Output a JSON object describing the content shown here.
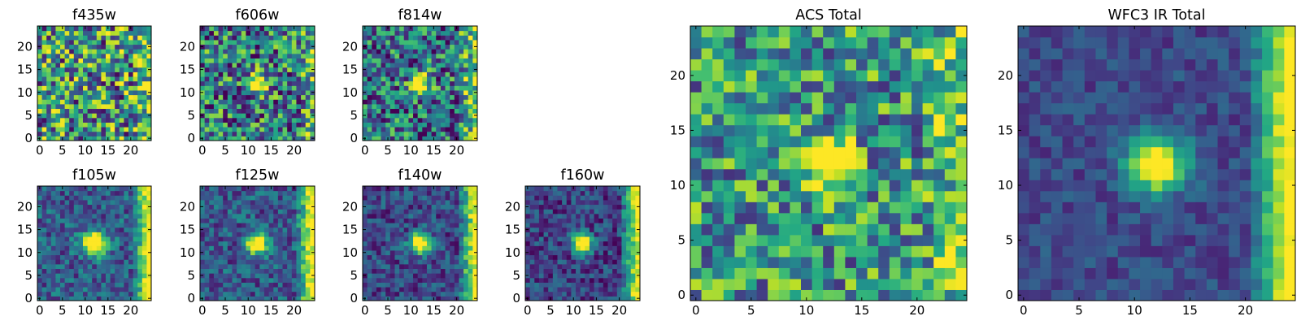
{
  "chart_data": [
    {
      "type": "heatmap",
      "title": "f435w",
      "xlim": [
        0,
        24
      ],
      "ylim": [
        0,
        24
      ],
      "xticks": [
        0,
        5,
        10,
        15,
        20
      ],
      "yticks": [
        0,
        5,
        10,
        15,
        20
      ],
      "colormap": "viridis",
      "source": {
        "noise": 0.5,
        "blob": null,
        "edge": 0.25,
        "bias": 0.52
      }
    },
    {
      "type": "heatmap",
      "title": "f606w",
      "xlim": [
        0,
        24
      ],
      "ylim": [
        0,
        24
      ],
      "xticks": [
        0,
        5,
        10,
        15,
        20
      ],
      "yticks": [
        0,
        5,
        10,
        15,
        20
      ],
      "colormap": "viridis",
      "source": {
        "noise": 0.45,
        "blob": {
          "x": 12,
          "y": 12,
          "r": 1.4
        },
        "edge": 0.2,
        "bias": 0.42
      }
    },
    {
      "type": "heatmap",
      "title": "f814w",
      "xlim": [
        0,
        24
      ],
      "ylim": [
        0,
        24
      ],
      "xticks": [
        0,
        5,
        10,
        15,
        20
      ],
      "yticks": [
        0,
        5,
        10,
        15,
        20
      ],
      "colormap": "viridis",
      "source": {
        "noise": 0.42,
        "blob": {
          "x": 12,
          "y": 12,
          "r": 1.4
        },
        "edge": 0.45,
        "bias": 0.38
      }
    },
    {
      "type": "heatmap",
      "title": "f105w",
      "xlim": [
        0,
        24
      ],
      "ylim": [
        0,
        24
      ],
      "xticks": [
        0,
        5,
        10,
        15,
        20
      ],
      "yticks": [
        0,
        5,
        10,
        15,
        20
      ],
      "colormap": "viridis",
      "source": {
        "noise": 0.22,
        "blob": {
          "x": 12,
          "y": 12,
          "r": 1.8
        },
        "edge": 0.75,
        "bias": 0.3
      }
    },
    {
      "type": "heatmap",
      "title": "f125w",
      "xlim": [
        0,
        24
      ],
      "ylim": [
        0,
        24
      ],
      "xticks": [
        0,
        5,
        10,
        15,
        20
      ],
      "yticks": [
        0,
        5,
        10,
        15,
        20
      ],
      "colormap": "viridis",
      "source": {
        "noise": 0.22,
        "blob": {
          "x": 12,
          "y": 12,
          "r": 1.6
        },
        "edge": 0.75,
        "bias": 0.28
      }
    },
    {
      "type": "heatmap",
      "title": "f140w",
      "xlim": [
        0,
        24
      ],
      "ylim": [
        0,
        24
      ],
      "xticks": [
        0,
        5,
        10,
        15,
        20
      ],
      "yticks": [
        0,
        5,
        10,
        15,
        20
      ],
      "colormap": "viridis",
      "source": {
        "noise": 0.2,
        "blob": {
          "x": 12,
          "y": 12,
          "r": 1.6
        },
        "edge": 0.78,
        "bias": 0.22
      }
    },
    {
      "type": "heatmap",
      "title": "f160w",
      "xlim": [
        0,
        24
      ],
      "ylim": [
        0,
        24
      ],
      "xticks": [
        0,
        5,
        10,
        15,
        20
      ],
      "yticks": [
        0,
        5,
        10,
        15,
        20
      ],
      "colormap": "viridis",
      "source": {
        "noise": 0.2,
        "blob": {
          "x": 12,
          "y": 12,
          "r": 1.5
        },
        "edge": 0.8,
        "bias": 0.2
      }
    },
    {
      "type": "heatmap",
      "title": "ACS Total",
      "xlim": [
        0,
        24
      ],
      "ylim": [
        0,
        24
      ],
      "xticks": [
        0,
        5,
        10,
        15,
        20
      ],
      "yticks": [
        0,
        5,
        10,
        15,
        20
      ],
      "colormap": "viridis",
      "source": {
        "noise": 0.38,
        "blob": {
          "x": 12,
          "y": 12,
          "r": 1.5
        },
        "edge": 0.3,
        "bias": 0.52
      }
    },
    {
      "type": "heatmap",
      "title": "WFC3 IR Total",
      "xlim": [
        0,
        24
      ],
      "ylim": [
        0,
        24
      ],
      "xticks": [
        0,
        5,
        10,
        15,
        20
      ],
      "yticks": [
        0,
        5,
        10,
        15,
        20
      ],
      "colormap": "viridis",
      "source": {
        "noise": 0.12,
        "blob": {
          "x": 12,
          "y": 12,
          "r": 1.8
        },
        "edge": 0.85,
        "bias": 0.22
      }
    }
  ]
}
